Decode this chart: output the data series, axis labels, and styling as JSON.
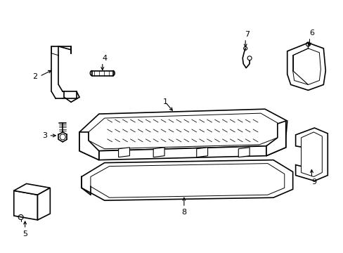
{
  "background_color": "#ffffff",
  "line_color": "#000000",
  "line_width": 1.2
}
